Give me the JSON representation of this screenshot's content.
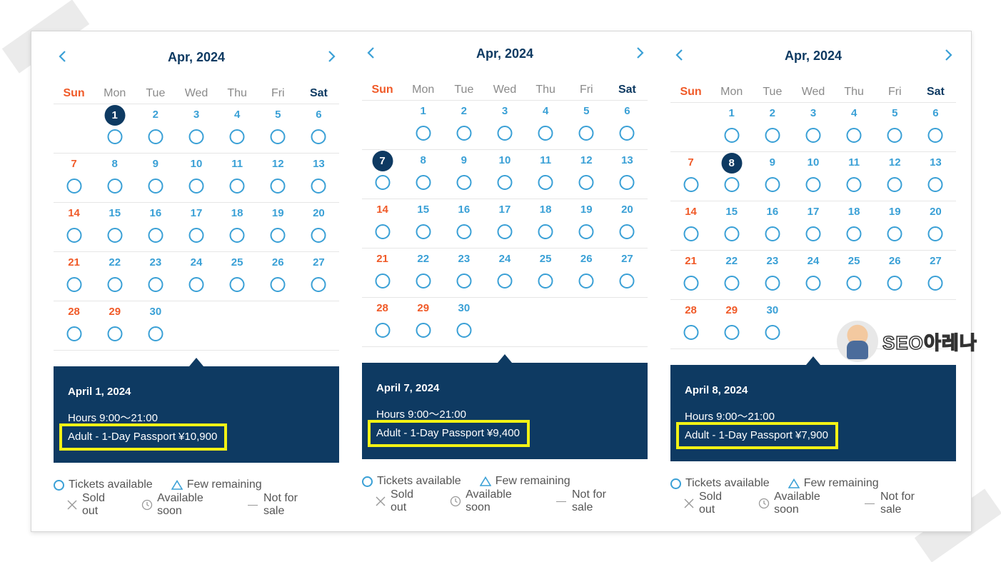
{
  "panels": [
    {
      "month_title": "Apr, 2024",
      "weekdays": [
        "Sun",
        "Mon",
        "Tue",
        "Wed",
        "Thu",
        "Fri",
        "Sat"
      ],
      "selected_day": 1,
      "popup": {
        "date": "April 1, 2024",
        "hours": "Hours 9:00～21:00",
        "price": "Adult - 1-Day Passport ¥10,900"
      }
    },
    {
      "month_title": "Apr, 2024",
      "weekdays": [
        "Sun",
        "Mon",
        "Tue",
        "Wed",
        "Thu",
        "Fri",
        "Sat"
      ],
      "selected_day": 7,
      "popup": {
        "date": "April 7, 2024",
        "hours": "Hours 9:00～21:00",
        "price": "Adult - 1-Day Passport ¥9,400"
      }
    },
    {
      "month_title": "Apr, 2024",
      "weekdays": [
        "Sun",
        "Mon",
        "Tue",
        "Wed",
        "Thu",
        "Fri",
        "Sat"
      ],
      "selected_day": 8,
      "popup": {
        "date": "April 8, 2024",
        "hours": "Hours 9:00～21:00",
        "price": "Adult - 1-Day Passport ¥7,900"
      }
    }
  ],
  "calendar": {
    "weeks": [
      [
        null,
        1,
        2,
        3,
        4,
        5,
        6
      ],
      [
        7,
        8,
        9,
        10,
        11,
        12,
        13
      ],
      [
        14,
        15,
        16,
        17,
        18,
        19,
        20
      ],
      [
        21,
        22,
        23,
        24,
        25,
        26,
        27
      ],
      [
        28,
        29,
        30,
        null,
        null,
        null,
        null
      ]
    ],
    "red_days": [
      7,
      14,
      21,
      28,
      29
    ]
  },
  "legend": {
    "available": "Tickets available",
    "few": "Few remaining",
    "sold_out": "Sold out",
    "soon": "Available soon",
    "not_for_sale": "Not for sale"
  },
  "watermark": {
    "text": "SEO아레나"
  },
  "colors": {
    "navy": "#0e3a62",
    "accent_blue": "#3aa0d6",
    "sunday_red": "#f05a28",
    "highlight_yellow": "#f2f215"
  }
}
